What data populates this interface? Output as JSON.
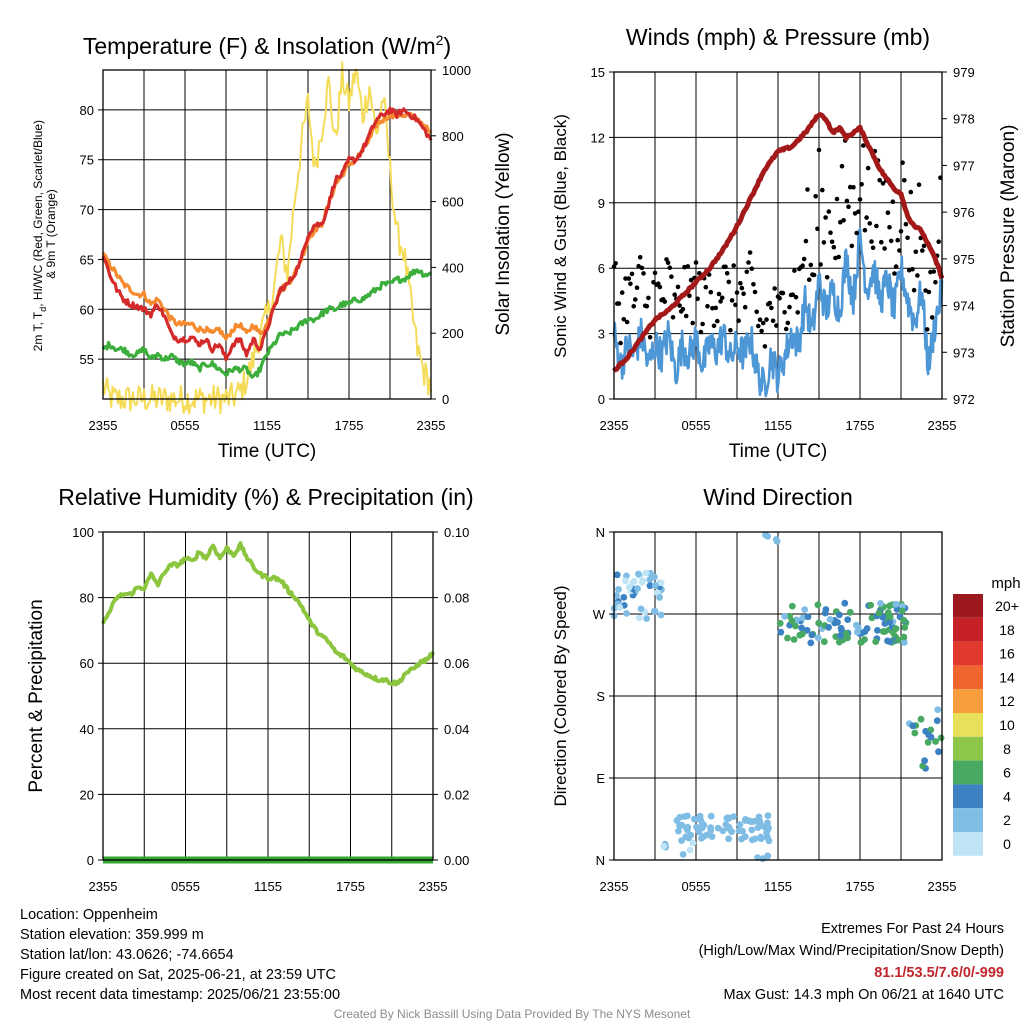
{
  "colors": {
    "temp": "#d42a2a",
    "dewpoint": "#3cae3c",
    "temp9m": "#f58b2e",
    "solar": "#f5dc58",
    "wind": "#4d97d6",
    "gust": "#000000",
    "pressure": "#a31919",
    "rh": "#8cc63f",
    "precip": "#32a532"
  },
  "footer": {
    "location": "Location: Oppenheim",
    "elevation": "Station elevation: 359.999 m",
    "latlon": "Station lat/lon: 43.0626; -74.6654",
    "created": "Figure created on Sat, 2025-06-21, at 23:59 UTC",
    "recent": "Most recent data timestamp: 2025/06/21 23:55:00",
    "extremes_title": "Extremes For Past 24 Hours",
    "extremes_subtitle": "(High/Low/Max Wind/Precipitation/Snow Depth)",
    "extremes_values": "81.1/53.5/7.6/0/-999",
    "max_gust": "Max Gust: 14.3 mph On 06/21 at 1640 UTC",
    "credit": "Created By Nick Bassill Using Data Provided By The NYS Mesonet"
  },
  "chart_data": [
    {
      "type": "line",
      "title": "Temperature (F) & Insolation (W/m²)",
      "xlabel": "Time (UTC)",
      "ylabel": "2m T, Td, HI/WC (Red, Green, Scarlet/Blue) & 9m T (Orange)",
      "ylabel_line1": "2m T, T_d, HI/WC (Red, Green, Scarlet/Blue)",
      "ylabel_line2": "& 9m T (Orange)",
      "ylabel_right": "Solar Insolation (Yellow)",
      "x_ticks": [
        "2355",
        "0555",
        "1155",
        "1755",
        "2355"
      ],
      "x_range": [
        0,
        24
      ],
      "ylim": [
        51,
        84
      ],
      "y_ticks": [
        55,
        60,
        65,
        70,
        75,
        80
      ],
      "ylim_right": [
        0,
        1000
      ],
      "y_ticks_right": [
        0,
        200,
        400,
        600,
        800,
        1000
      ],
      "grid": true,
      "series": [
        {
          "name": "2m T",
          "color_key": "temp",
          "axis": "left",
          "x": [
            0,
            0.5,
            1,
            1.5,
            2,
            2.5,
            3,
            3.5,
            4,
            4.5,
            5,
            5.5,
            6,
            6.5,
            7,
            7.5,
            8,
            8.5,
            9,
            9.5,
            10,
            10.5,
            11,
            11.5,
            12,
            12.5,
            13,
            13.5,
            14,
            14.5,
            15,
            15.5,
            16,
            16.5,
            17,
            17.5,
            18,
            18.5,
            19,
            19.5,
            20,
            20.5,
            21,
            21.5,
            22,
            22.5,
            23,
            23.5,
            24
          ],
          "y": [
            65.5,
            63.5,
            62,
            61,
            60.5,
            60.3,
            60,
            59.5,
            60.5,
            59.3,
            57.5,
            57,
            57,
            57.2,
            56.5,
            57,
            56,
            56.5,
            55,
            56.5,
            57,
            55.5,
            57,
            56,
            58,
            60,
            62,
            62.5,
            63.5,
            65,
            67.5,
            68.5,
            68.5,
            70.5,
            73,
            73.5,
            75,
            75,
            76,
            77.5,
            79,
            79.5,
            80,
            79.5,
            80,
            79.5,
            79,
            78,
            77
          ]
        },
        {
          "name": "9m T",
          "color_key": "temp9m",
          "axis": "left",
          "x": [
            0,
            0.5,
            1,
            1.5,
            2,
            2.5,
            3,
            3.5,
            4,
            4.5,
            5,
            5.5,
            6,
            6.5,
            7,
            7.5,
            8,
            8.5,
            9,
            9.5,
            10,
            10.5,
            11,
            11.5,
            12,
            12.5,
            13,
            13.5,
            14,
            14.5,
            15,
            15.5,
            16,
            16.5,
            17,
            17.5,
            18,
            18.5,
            19,
            19.5,
            20,
            20.5,
            21,
            21.5,
            22,
            22.5,
            23,
            23.5,
            24
          ],
          "y": [
            65.5,
            64.5,
            63.5,
            62.5,
            62,
            61.5,
            61.5,
            60.5,
            61,
            60,
            59,
            58.5,
            58.5,
            58.5,
            58,
            58,
            57.5,
            58,
            57,
            58,
            58.5,
            57.5,
            58.5,
            57.5,
            58.5,
            60.5,
            62,
            62.5,
            63.5,
            65,
            67,
            68,
            68.5,
            70.5,
            72.5,
            73.5,
            74.5,
            75,
            76,
            77,
            78.5,
            79,
            79.5,
            79.5,
            79.5,
            79.5,
            79,
            78.5,
            77.5
          ]
        },
        {
          "name": "Td",
          "color_key": "dewpoint",
          "axis": "left",
          "x": [
            0,
            0.5,
            1,
            1.5,
            2,
            2.5,
            3,
            3.5,
            4,
            4.5,
            5,
            5.5,
            6,
            6.5,
            7,
            7.5,
            8,
            8.5,
            9,
            9.5,
            10,
            10.5,
            11,
            11.5,
            12,
            12.5,
            13,
            13.5,
            14,
            14.5,
            15,
            15.5,
            16,
            16.5,
            17,
            17.5,
            18,
            18.5,
            19,
            19.5,
            20,
            20.5,
            21,
            21.5,
            22,
            22.5,
            23,
            23.5,
            24
          ],
          "y": [
            56,
            56.5,
            56,
            56,
            55.5,
            55.5,
            56,
            55,
            55.5,
            55,
            55.3,
            54.8,
            54.5,
            54.7,
            54,
            54.5,
            54.5,
            54,
            53.5,
            54,
            54,
            54,
            53,
            54,
            55.5,
            56.5,
            57.5,
            57.5,
            58,
            58.5,
            59,
            59,
            59.5,
            60,
            60,
            60.5,
            60.5,
            61,
            61,
            61.5,
            62,
            62.5,
            62.5,
            63,
            63,
            63.5,
            64,
            63.5,
            63.5
          ]
        },
        {
          "name": "Solar",
          "color_key": "solar",
          "axis": "right",
          "x": [
            0,
            0.5,
            1,
            2,
            3,
            4,
            5,
            6,
            7,
            8,
            9,
            9.5,
            10,
            10.5,
            11,
            11.5,
            12,
            12.5,
            13,
            13.5,
            14,
            14.5,
            15,
            15.5,
            16,
            16.5,
            17,
            17.5,
            18,
            18.5,
            19,
            19.5,
            20,
            20.5,
            21,
            21.5,
            22,
            22.5,
            23,
            23.5,
            24
          ],
          "y": [
            40,
            5,
            0,
            0,
            0,
            0,
            0,
            0,
            0,
            0,
            0,
            5,
            20,
            60,
            120,
            200,
            250,
            330,
            480,
            380,
            600,
            770,
            900,
            700,
            820,
            960,
            780,
            980,
            900,
            1000,
            860,
            950,
            800,
            920,
            700,
            500,
            450,
            300,
            150,
            80,
            40
          ]
        }
      ]
    },
    {
      "type": "line",
      "title": "Winds (mph) & Pressure (mb)",
      "xlabel": "Time (UTC)",
      "ylabel": "Sonic Wind & Gust (Blue, Black)",
      "ylabel_right": "Station Pressure (Maroon)",
      "x_ticks": [
        "2355",
        "0555",
        "1155",
        "1755",
        "2355"
      ],
      "x_range": [
        0,
        24
      ],
      "ylim": [
        0,
        15
      ],
      "y_ticks": [
        0,
        3,
        6,
        9,
        12,
        15
      ],
      "ylim_right": [
        972,
        979
      ],
      "y_ticks_right": [
        972,
        973,
        974,
        975,
        976,
        977,
        978,
        979
      ],
      "grid": true,
      "series": [
        {
          "name": "Sonic Wind",
          "color_key": "wind",
          "axis": "left",
          "x": [
            0,
            0.5,
            1,
            1.5,
            2,
            2.5,
            3,
            3.5,
            4,
            4.5,
            5,
            5.5,
            6,
            6.5,
            7,
            7.5,
            8,
            8.5,
            9,
            9.5,
            10,
            10.5,
            11,
            11.5,
            12,
            12.5,
            13,
            13.5,
            14,
            14.5,
            15,
            15.5,
            16,
            16.5,
            17,
            17.5,
            18,
            18.5,
            19,
            19.5,
            20,
            20.5,
            21,
            21.5,
            22,
            22.5,
            23,
            23.5,
            24
          ],
          "y": [
            3,
            1.5,
            2.5,
            2,
            3,
            1.5,
            2.5,
            2,
            3,
            1.2,
            2.5,
            2,
            2.8,
            1.5,
            2.5,
            2.2,
            3,
            1.8,
            2.5,
            2,
            2.8,
            1.2,
            0.5,
            2,
            1,
            2,
            3,
            2.5,
            4.5,
            3,
            5.5,
            4,
            5,
            4,
            6.5,
            4.5,
            7.5,
            5,
            6,
            4.5,
            5.5,
            4,
            6,
            4.5,
            3.5,
            5,
            1.5,
            3.5,
            5
          ]
        },
        {
          "name": "Station Pressure",
          "color_key": "pressure",
          "axis": "right",
          "x": [
            0,
            1,
            2,
            3,
            4,
            5,
            6,
            7,
            8,
            9,
            10,
            11,
            12,
            13,
            14,
            15,
            15.5,
            16,
            16.5,
            17,
            17.5,
            18,
            18.5,
            19,
            19.5,
            20,
            20.5,
            21,
            21.5,
            22,
            22.5,
            23,
            23.5,
            24
          ],
          "y": [
            972.6,
            972.9,
            973.3,
            973.7,
            973.9,
            974.2,
            974.5,
            974.8,
            975.2,
            975.7,
            976.3,
            976.9,
            977.3,
            977.4,
            977.7,
            978.1,
            978.0,
            977.7,
            977.8,
            977.6,
            977.7,
            977.8,
            977.5,
            977.2,
            976.9,
            976.7,
            976.5,
            976.4,
            975.9,
            975.7,
            975.6,
            975.3,
            975.0,
            974.6
          ]
        }
      ]
    },
    {
      "type": "line",
      "title": "Relative Humidity (%) & Precipitation (in)",
      "xlabel": "",
      "ylabel": "Percent & Precipitation",
      "x_ticks": [
        "2355",
        "0555",
        "1155",
        "1755",
        "2355"
      ],
      "x_range": [
        0,
        24
      ],
      "ylim": [
        0,
        100
      ],
      "y_ticks": [
        0,
        20,
        40,
        60,
        80,
        100
      ],
      "ylim_right": [
        0,
        0.1
      ],
      "y_ticks_right": [
        "0.00",
        "0.02",
        "0.04",
        "0.06",
        "0.08",
        "0.10"
      ],
      "grid": true,
      "series": [
        {
          "name": "RH",
          "color_key": "rh",
          "axis": "left",
          "x": [
            0,
            0.5,
            1,
            1.5,
            2,
            2.5,
            3,
            3.5,
            4,
            4.5,
            5,
            5.5,
            6,
            6.5,
            7,
            7.5,
            8,
            8.5,
            9,
            9.5,
            10,
            10.5,
            11,
            11.5,
            12,
            12.5,
            13,
            13.5,
            14,
            14.5,
            15,
            15.5,
            16,
            16.5,
            17,
            17.5,
            18,
            18.5,
            19,
            19.5,
            20,
            20.5,
            21,
            21.5,
            22,
            22.5,
            23,
            23.5,
            24
          ],
          "y": [
            72,
            76,
            80,
            81,
            81,
            83,
            83,
            87,
            84,
            88,
            90,
            90,
            92,
            91,
            94,
            92,
            96,
            92,
            95,
            93,
            96,
            92,
            89,
            87,
            86,
            86,
            85,
            82,
            80,
            77,
            73,
            70,
            68,
            66,
            63,
            62,
            60,
            58,
            57,
            56,
            55,
            55,
            54,
            54,
            57,
            58,
            60,
            61,
            63
          ]
        },
        {
          "name": "Precipitation",
          "color_key": "precip",
          "axis": "right",
          "x": [
            0,
            24
          ],
          "y": [
            0,
            0
          ]
        }
      ]
    },
    {
      "type": "scatter",
      "title": "Wind Direction",
      "xlabel": "",
      "ylabel": "Direction (Colored By Speed)",
      "x_ticks": [
        "2355",
        "0555",
        "1155",
        "1755",
        "2355"
      ],
      "x_range": [
        0,
        24
      ],
      "y_ticks": [
        "N",
        "E",
        "S",
        "W",
        "N"
      ],
      "ylim": [
        0,
        360
      ],
      "grid": true,
      "colorbar": {
        "title": "mph",
        "labels": [
          "20+",
          "18",
          "16",
          "14",
          "12",
          "10",
          "8",
          "6",
          "4",
          "2",
          "0"
        ],
        "colors": [
          "#9c1a1e",
          "#c62127",
          "#e03a2c",
          "#f06430",
          "#f89c3c",
          "#e9e05a",
          "#8cc74a",
          "#48a963",
          "#3c82c2",
          "#7fbde5",
          "#bfe4f6"
        ]
      }
    }
  ]
}
